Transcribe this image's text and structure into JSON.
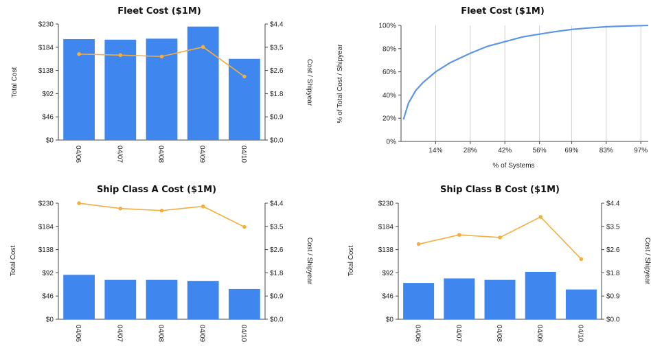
{
  "colors": {
    "bar": "#3f87ee",
    "line": "#f5ad3d",
    "curve": "#5b96e6"
  },
  "chart_data": [
    {
      "type": "bar",
      "title": "Fleet Cost ($1M)",
      "ylabel": "Total Cost",
      "y2label": "Cost / Shipyear",
      "categories": [
        "04/06",
        "04/07",
        "04/08",
        "04/09",
        "04/10"
      ],
      "ylim": [
        0,
        230
      ],
      "yticks": [
        "$0",
        "$46",
        "$92",
        "$138",
        "$184",
        "$230"
      ],
      "y2lim": [
        0,
        4.4
      ],
      "y2ticks": [
        "$0.0",
        "$0.9",
        "$1.8",
        "$2.6",
        "$3.5",
        "$4.4"
      ],
      "series": [
        {
          "type": "bar",
          "axis": "left",
          "values": [
            200,
            199,
            201,
            225,
            161
          ]
        },
        {
          "type": "line",
          "axis": "right",
          "values": [
            3.26,
            3.22,
            3.17,
            3.53,
            2.41
          ]
        }
      ]
    },
    {
      "type": "line",
      "title": "Fleet Cost ($1M)",
      "xlabel": "% of Systems",
      "ylabel": "% of Total Cost / Shipyear",
      "xlim": [
        0,
        100
      ],
      "xticks": [
        14,
        28,
        42,
        56,
        69,
        83,
        97
      ],
      "xticklabels": [
        "14%",
        "28%",
        "42%",
        "56%",
        "69%",
        "83%",
        "97%"
      ],
      "ylim": [
        0,
        100
      ],
      "yticks": [
        0,
        20,
        40,
        60,
        80,
        100
      ],
      "yticklabels": [
        "0%",
        "20%",
        "40%",
        "60%",
        "80%",
        "100%"
      ],
      "grid": "vertical",
      "series": [
        {
          "x": [
            1,
            3,
            6,
            9,
            14,
            20,
            28,
            35,
            42,
            49,
            56,
            62,
            69,
            76,
            83,
            90,
            97,
            100
          ],
          "y": [
            19,
            33,
            44,
            51,
            60,
            68,
            76,
            82,
            86,
            90,
            92.5,
            94.5,
            96.5,
            97.8,
            98.8,
            99.4,
            99.8,
            100
          ]
        }
      ]
    },
    {
      "type": "bar",
      "title": "Ship Class A Cost ($1M)",
      "ylabel": "Total Cost",
      "y2label": "Cost / Shipyear",
      "categories": [
        "04/06",
        "04/07",
        "04/08",
        "04/09",
        "04/10"
      ],
      "ylim": [
        0,
        230
      ],
      "yticks": [
        "$0",
        "$46",
        "$92",
        "$138",
        "$184",
        "$230"
      ],
      "y2lim": [
        0,
        4.4
      ],
      "y2ticks": [
        "$0.0",
        "$0.9",
        "$1.8",
        "$2.6",
        "$3.5",
        "$4.4"
      ],
      "series": [
        {
          "type": "bar",
          "axis": "left",
          "values": [
            88,
            78,
            78,
            76,
            60
          ]
        },
        {
          "type": "line",
          "axis": "right",
          "values": [
            4.4,
            4.2,
            4.12,
            4.28,
            3.5
          ]
        }
      ]
    },
    {
      "type": "bar",
      "title": "Ship Class B Cost ($1M)",
      "ylabel": "Total Cost",
      "y2label": "Cost / Shipyear",
      "categories": [
        "04/06",
        "04/07",
        "04/08",
        "04/09",
        "04/10"
      ],
      "ylim": [
        0,
        230
      ],
      "yticks": [
        "$0",
        "$46",
        "$92",
        "$138",
        "$184",
        "$230"
      ],
      "y2lim": [
        0,
        4.4
      ],
      "y2ticks": [
        "$0.0",
        "$0.9",
        "$1.8",
        "$2.6",
        "$3.5",
        "$4.4"
      ],
      "series": [
        {
          "type": "bar",
          "axis": "left",
          "values": [
            72,
            81,
            78,
            94,
            59
          ]
        },
        {
          "type": "line",
          "axis": "right",
          "values": [
            2.85,
            3.2,
            3.1,
            3.88,
            2.28
          ]
        }
      ]
    }
  ]
}
